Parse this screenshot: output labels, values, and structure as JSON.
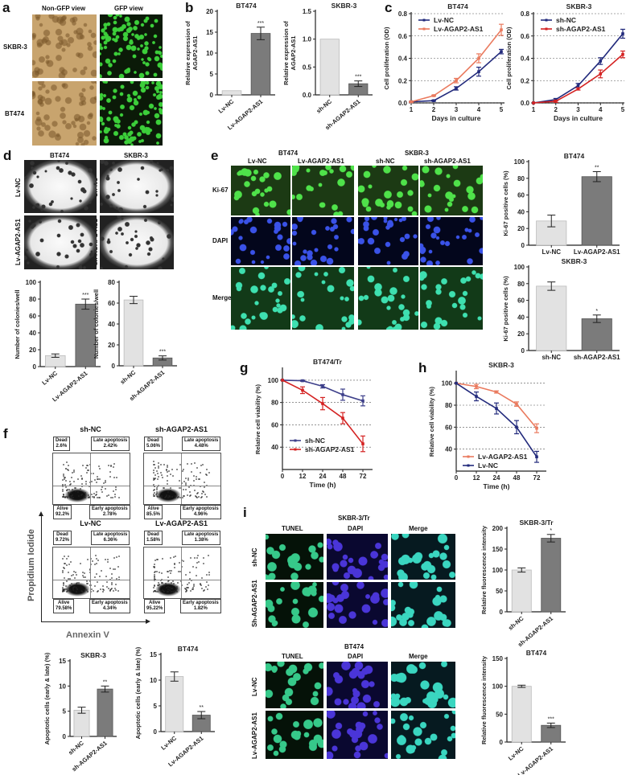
{
  "panel_letters": [
    "a",
    "b",
    "c",
    "d",
    "e",
    "f",
    "g",
    "h",
    "i"
  ],
  "panel_a": {
    "columns": [
      "Non-GFP view",
      "GFP view"
    ],
    "rows": [
      "SKBR-3",
      "BT474"
    ]
  },
  "panel_d": {
    "titles": [
      "BT474",
      "SKBR-3"
    ],
    "rows": [
      "Lv-NC",
      "Lv-AGAP2-AS1",
      "Sh-NC",
      "sh-AGAP2-AS1"
    ]
  },
  "panel_e": {
    "groups": [
      "BT474",
      "SKBR-3"
    ],
    "columns": [
      "Lv-NC",
      "Lv-AGAP2-AS1",
      "sh-NC",
      "sh-AGAP2-AS1"
    ],
    "rows": [
      "Ki-67",
      "DAPI",
      "Merge"
    ]
  },
  "panel_i": {
    "titles": [
      "SKBR-3/Tr",
      "BT474"
    ],
    "columns": [
      "TUNEL",
      "DAPI",
      "Merge"
    ],
    "rows": [
      "sh-NC",
      "Sh-AGAP2-AS1",
      "Lv-NC",
      "Lv-AGAP2-AS1"
    ]
  },
  "flow": {
    "y_axis": "Propidium Iodide",
    "x_axis": "Annexin V",
    "labels": {
      "dead": "Dead",
      "late": "Late apoptosis",
      "alive": "Alive",
      "early": "Early apoptosis"
    },
    "plots": [
      {
        "title": "sh-NC",
        "dead": "2.6%",
        "late": "2.42%",
        "alive": "92.2%",
        "early": "2.78%"
      },
      {
        "title": "sh-AGAP2-AS1",
        "dead": "5.06%",
        "late": "4.48%",
        "alive": "85.5%",
        "early": "4.96%"
      },
      {
        "title": "Lv-NC",
        "dead": "9.72%",
        "late": "6.36%",
        "alive": "79.58%",
        "early": "4.34%"
      },
      {
        "title": "Lv-AGAP2-AS1",
        "dead": "1.58%",
        "late": "1.38%",
        "alive": "95.22%",
        "early": "1.82%"
      }
    ]
  },
  "colors": {
    "bar_light": "#e2e2e2",
    "bar_dark": "#7b7b7b",
    "navy": "#222a7c",
    "orange": "#ea7a5e",
    "red": "#d42222",
    "gfp": "#2fbf3a",
    "dapi": "#2a36c8"
  },
  "chart_data": [
    {
      "type": "bar",
      "title": "BT474",
      "ylabel": [
        "Relative expression of",
        "AGAP2-AS1"
      ],
      "categories": [
        "Lv-NC",
        "Lv-AGAP2-AS1"
      ],
      "values": [
        1.0,
        14.7
      ],
      "errors": [
        0,
        1.5
      ],
      "significance": [
        "",
        "***"
      ],
      "ylim": [
        0,
        20
      ],
      "yticks": [
        "0",
        "5",
        "10",
        "15",
        "20"
      ]
    },
    {
      "type": "bar",
      "title": "SKBR-3",
      "ylabel": [
        "Relative expression of",
        "AGAP2-AS1"
      ],
      "categories": [
        "sh-NC",
        "sh-AGAP2-AS1"
      ],
      "values": [
        1.0,
        0.2
      ],
      "errors": [
        0,
        0.05
      ],
      "significance": [
        "",
        "***"
      ],
      "ylim": [
        0,
        1.5
      ],
      "yticks": [
        "0.0",
        "0.5",
        "1.0",
        "1.5"
      ]
    },
    {
      "type": "line",
      "title": "BT474",
      "xlabel": "Days in culture",
      "ylabel": [
        "Cell proliferation (OD)"
      ],
      "x": [
        "1",
        "2",
        "3",
        "4",
        "5"
      ],
      "ylim": [
        0,
        0.8
      ],
      "yticks": [
        "0.0",
        "0.2",
        "0.4",
        "0.6",
        "0.8"
      ],
      "grid": true,
      "legend": "top-left",
      "series": [
        {
          "name": "Lv-NC",
          "color": "#222a7c",
          "values": [
            0.01,
            0.02,
            0.13,
            0.28,
            0.46
          ],
          "errors": [
            0.005,
            0.005,
            0.015,
            0.04,
            0.02
          ]
        },
        {
          "name": "Lv-AGAP2-AS1",
          "color": "#ea7a5e",
          "values": [
            0.01,
            0.065,
            0.2,
            0.4,
            0.655
          ],
          "errors": [
            0.005,
            0.005,
            0.02,
            0.04,
            0.05
          ]
        }
      ]
    },
    {
      "type": "line",
      "title": "SKBR-3",
      "xlabel": "Days in culture",
      "ylabel": [
        "Cell proliferation (OD)"
      ],
      "x": [
        "1",
        "2",
        "3",
        "4",
        "5"
      ],
      "ylim": [
        0,
        0.8
      ],
      "yticks": [
        "0.0",
        "0.2",
        "0.4",
        "0.6",
        "0.8"
      ],
      "grid": true,
      "legend": "top-left",
      "series": [
        {
          "name": "sh-NC",
          "color": "#222a7c",
          "values": [
            0,
            0.03,
            0.155,
            0.375,
            0.62
          ],
          "errors": [
            0,
            0.01,
            0.02,
            0.03,
            0.04
          ]
        },
        {
          "name": "sh-AGAP2-AS1",
          "color": "#d42222",
          "values": [
            0,
            0.015,
            0.125,
            0.26,
            0.435
          ],
          "errors": [
            0,
            0.01,
            0.01,
            0.035,
            0.03
          ]
        }
      ]
    },
    {
      "type": "bar",
      "title": "",
      "ylabel": [
        "Number of colonies/well"
      ],
      "categories": [
        "Lv-NC",
        "Lv-AGAP2-AS1"
      ],
      "values": [
        13,
        74
      ],
      "errors": [
        2,
        6
      ],
      "significance": [
        "",
        "***"
      ],
      "ylim": [
        0,
        100
      ],
      "yticks": [
        "0",
        "20",
        "40",
        "60",
        "80",
        "100"
      ]
    },
    {
      "type": "bar",
      "title": "",
      "ylabel": [
        "Number of colonies/well"
      ],
      "categories": [
        "sh-NC",
        "sh-AGAP2-AS1"
      ],
      "values": [
        63,
        7.5
      ],
      "errors": [
        3.5,
        2
      ],
      "significance": [
        "",
        "***"
      ],
      "ylim": [
        0,
        80
      ],
      "yticks": [
        "0",
        "20",
        "40",
        "60",
        "80"
      ]
    },
    {
      "type": "bar",
      "title": "BT474",
      "ylabel": [
        "Ki-67 positive cells (%)"
      ],
      "categories": [
        "Lv-NC",
        "Lv-AGAP2-AS1"
      ],
      "values": [
        29,
        82
      ],
      "errors": [
        7,
        6
      ],
      "significance": [
        "",
        "**"
      ],
      "ylim": [
        0,
        100
      ],
      "yticks": [
        "0",
        "20",
        "40",
        "60",
        "80",
        "100"
      ]
    },
    {
      "type": "bar",
      "title": "SKBR-3",
      "ylabel": [
        "Ki-67 positive cells (%)"
      ],
      "categories": [
        "sh-NC",
        "sh-AGAP2-AS1"
      ],
      "values": [
        77,
        38
      ],
      "errors": [
        5,
        4.5
      ],
      "significance": [
        "",
        "*"
      ],
      "ylim": [
        0,
        100
      ],
      "yticks": [
        "0",
        "20",
        "40",
        "60",
        "80",
        "100"
      ]
    },
    {
      "type": "line",
      "title": "BT474/Tr",
      "xlabel": "Time (h)",
      "ylabel": [
        "Relative cell viability (%)"
      ],
      "x": [
        "0",
        "12",
        "24",
        "48",
        "72"
      ],
      "ylim": [
        20,
        110
      ],
      "yticks": [
        "40",
        "60",
        "80",
        "100"
      ],
      "grid": true,
      "legend": "bottom-left",
      "series": [
        {
          "name": "sh-NC",
          "color": "#3d3f8a",
          "values": [
            100,
            99.5,
            94.5,
            87,
            81.5
          ],
          "errors": [
            0,
            0.5,
            1.5,
            5,
            4.5
          ]
        },
        {
          "name": "sh-AGAP2-AS1",
          "color": "#d42222",
          "values": [
            100,
            91,
            79,
            66,
            43
          ],
          "errors": [
            0,
            3,
            5.5,
            5,
            7
          ]
        }
      ]
    },
    {
      "type": "line",
      "title": "SKBR-3",
      "xlabel": "Time (h)",
      "ylabel": [
        "Relative cell viability (%)"
      ],
      "x": [
        "0",
        "12",
        "24",
        "48",
        "72"
      ],
      "ylim": [
        20,
        110
      ],
      "yticks": [
        "40",
        "60",
        "80",
        "100"
      ],
      "grid": true,
      "legend": "bottom-left",
      "series": [
        {
          "name": "Lv-AGAP2-AS1",
          "color": "#ea7a5e",
          "values": [
            100,
            97,
            92,
            81,
            59
          ],
          "errors": [
            0,
            2,
            1,
            2,
            4
          ]
        },
        {
          "name": "Lv-NC",
          "color": "#222a7c",
          "values": [
            100,
            88,
            77,
            60,
            33
          ],
          "errors": [
            0,
            4,
            5,
            6,
            5
          ]
        }
      ]
    },
    {
      "type": "bar",
      "title": "SKBR-3",
      "ylabel": [
        "Apoptotic cells (early & late) (%)"
      ],
      "categories": [
        "sh-NC",
        "sh-AGAP2-AS1"
      ],
      "values": [
        5.2,
        9.4
      ],
      "errors": [
        0.6,
        0.6
      ],
      "significance": [
        "",
        "**"
      ],
      "ylim": [
        0,
        15
      ],
      "yticks": [
        "0",
        "5",
        "10",
        "15"
      ]
    },
    {
      "type": "bar",
      "title": "BT474",
      "ylabel": [
        "Apoptotic cells (early & late) (%)"
      ],
      "categories": [
        "Lv-NC",
        "Lv-AGAP2-AS1"
      ],
      "values": [
        10.7,
        3.2
      ],
      "errors": [
        0.9,
        0.7
      ],
      "significance": [
        "",
        "**"
      ],
      "ylim": [
        0,
        15
      ],
      "yticks": [
        "0",
        "5",
        "10",
        "15"
      ]
    },
    {
      "type": "bar",
      "title": "SKBR-3/Tr",
      "ylabel": [
        "Relative fluorescence intensity"
      ],
      "categories": [
        "sh-NC",
        "sh-AGAP2-AS1"
      ],
      "values": [
        100,
        176
      ],
      "errors": [
        5,
        9
      ],
      "significance": [
        "",
        "*"
      ],
      "ylim": [
        0,
        200
      ],
      "yticks": [
        "0",
        "50",
        "100",
        "150",
        "200"
      ]
    },
    {
      "type": "bar",
      "title": "BT474",
      "ylabel": [
        "Relative fluorescence intensity"
      ],
      "categories": [
        "Lv-NC",
        "Lv-AGAP2-AS1"
      ],
      "values": [
        100,
        30
      ],
      "errors": [
        2,
        4
      ],
      "significance": [
        "",
        "***"
      ],
      "ylim": [
        0,
        150
      ],
      "yticks": [
        "0",
        "50",
        "100",
        "150"
      ]
    }
  ]
}
